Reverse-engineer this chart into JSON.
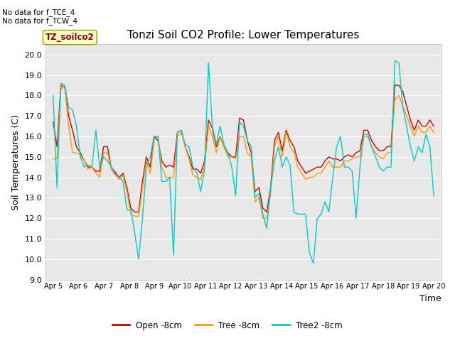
{
  "title": "Tonzi Soil CO2 Profile: Lower Temperatures",
  "xlabel": "Time",
  "ylabel": "Soil Temperatures (C)",
  "ylim": [
    9.0,
    20.5
  ],
  "yticks": [
    9.0,
    10.0,
    11.0,
    12.0,
    13.0,
    14.0,
    15.0,
    16.0,
    17.0,
    18.0,
    19.0,
    20.0
  ],
  "fig_bg_color": "#ffffff",
  "plot_bg_color": "#e8e8e8",
  "annotation_nodata": "No data for f_TCE_4\nNo data for f_TCW_4",
  "annotation_box": "TZ_soilco2",
  "x_tick_labels": [
    "Apr 5",
    "Apr 6",
    "Apr 7",
    "Apr 8",
    "Apr 9",
    "Apr 10",
    "Apr 11",
    "Apr 12",
    "Apr 13",
    "Apr 14",
    "Apr 15",
    "Apr 16",
    "Apr 17",
    "Apr 18",
    "Apr 19",
    "Apr 20"
  ],
  "legend_labels": [
    "Open -8cm",
    "Tree -8cm",
    "Tree2 -8cm"
  ],
  "line_colors": [
    "#cc0000",
    "#ff9900",
    "#00cccc"
  ],
  "open_data": [
    16.7,
    15.5,
    18.5,
    18.4,
    17.0,
    16.3,
    15.5,
    15.2,
    14.8,
    14.5,
    14.5,
    14.3,
    14.3,
    15.5,
    15.5,
    14.4,
    14.2,
    14.0,
    14.2,
    13.5,
    12.5,
    12.3,
    12.3,
    13.8,
    15.0,
    14.5,
    16.0,
    15.8,
    14.8,
    14.5,
    14.6,
    14.5,
    16.2,
    16.3,
    15.5,
    15.0,
    14.4,
    14.4,
    14.2,
    14.8,
    16.8,
    16.4,
    15.5,
    16.0,
    15.5,
    15.2,
    15.0,
    15.0,
    16.9,
    16.8,
    15.8,
    15.2,
    13.3,
    13.5,
    12.5,
    12.3,
    13.5,
    15.8,
    16.2,
    15.3,
    16.3,
    15.8,
    15.5,
    14.8,
    14.5,
    14.2,
    14.3,
    14.4,
    14.5,
    14.5,
    14.8,
    15.0,
    14.9,
    14.9,
    14.8,
    15.0,
    15.1,
    15.0,
    15.2,
    15.3,
    16.3,
    16.3,
    15.8,
    15.5,
    15.3,
    15.3,
    15.5,
    15.5,
    18.5,
    18.5,
    18.2,
    17.5,
    16.8,
    16.3,
    16.8,
    16.5,
    16.5,
    16.8,
    16.5
  ],
  "tree_data": [
    14.9,
    14.9,
    18.3,
    18.5,
    16.5,
    15.2,
    15.2,
    15.1,
    14.8,
    14.4,
    14.5,
    14.2,
    14.0,
    15.2,
    15.2,
    14.4,
    14.1,
    13.9,
    14.1,
    13.3,
    12.2,
    12.1,
    12.1,
    13.5,
    14.8,
    14.2,
    15.8,
    16.0,
    14.5,
    14.0,
    14.0,
    14.0,
    16.0,
    16.2,
    15.5,
    14.9,
    14.1,
    14.0,
    13.9,
    14.5,
    16.5,
    16.0,
    15.2,
    16.0,
    15.5,
    15.0,
    15.0,
    14.9,
    16.0,
    16.0,
    15.2,
    15.0,
    12.8,
    13.0,
    12.0,
    12.0,
    13.2,
    15.5,
    16.0,
    15.0,
    16.2,
    15.5,
    15.2,
    14.5,
    14.2,
    13.9,
    14.0,
    14.0,
    14.2,
    14.2,
    14.5,
    14.8,
    14.5,
    14.5,
    14.5,
    14.8,
    14.8,
    14.9,
    15.0,
    15.0,
    16.0,
    16.0,
    15.5,
    15.2,
    15.0,
    14.9,
    15.2,
    15.2,
    17.8,
    18.0,
    17.5,
    17.0,
    16.5,
    16.0,
    16.5,
    16.2,
    16.2,
    16.5,
    16.2
  ],
  "tree2_data": [
    18.0,
    13.5,
    18.6,
    18.5,
    17.4,
    17.3,
    16.5,
    15.0,
    14.5,
    14.6,
    14.5,
    16.3,
    14.5,
    15.0,
    14.8,
    14.5,
    14.3,
    14.0,
    13.8,
    12.4,
    12.4,
    11.3,
    10.0,
    12.0,
    14.5,
    15.0,
    16.0,
    16.0,
    13.8,
    13.8,
    14.0,
    10.2,
    16.2,
    16.3,
    15.6,
    15.5,
    14.5,
    14.2,
    13.3,
    14.4,
    19.6,
    16.5,
    15.6,
    16.5,
    15.6,
    15.2,
    14.5,
    13.1,
    16.7,
    16.5,
    15.8,
    15.5,
    13.0,
    13.2,
    12.2,
    11.5,
    13.5,
    14.8,
    15.5,
    14.5,
    15.0,
    14.6,
    12.3,
    12.2,
    12.2,
    12.2,
    10.3,
    9.8,
    12.0,
    12.2,
    12.8,
    12.3,
    14.0,
    15.5,
    16.0,
    14.5,
    14.5,
    14.3,
    12.0,
    14.5,
    16.1,
    16.1,
    15.5,
    15.0,
    14.5,
    14.3,
    14.5,
    14.5,
    19.7,
    19.6,
    17.5,
    16.5,
    15.5,
    14.8,
    15.5,
    15.2,
    16.1,
    15.5,
    13.1
  ]
}
